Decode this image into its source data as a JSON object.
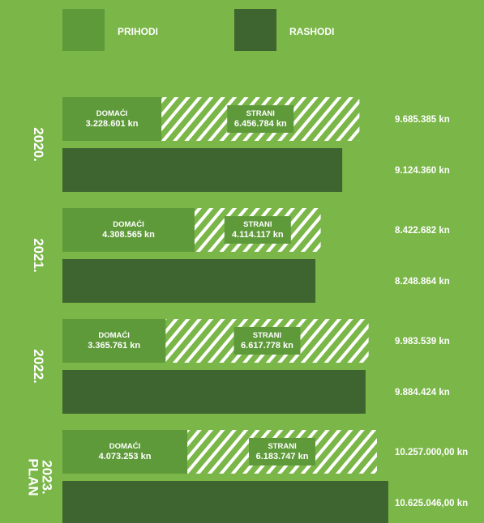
{
  "chart_data": {
    "type": "bar",
    "legend": {
      "position": "top",
      "items": [
        {
          "label": "PRIHODI",
          "color": "#5f9a3a"
        },
        {
          "label": "RASHODI",
          "color": "#3e6430"
        }
      ]
    },
    "colors": {
      "background": "#7ab648",
      "prihodi": "#5f9a3a",
      "rashodi": "#3e6430",
      "stripe": "#ffffff"
    },
    "unit": "kn",
    "domaci_label": "DOMAĆI",
    "strani_label": "STRANI",
    "groups": [
      {
        "year_lines": [
          "2020."
        ],
        "prihodi": {
          "domaci": 3228601,
          "strani": 6456784,
          "domaci_text": "3.228.601 kn",
          "strani_text": "6.456.784 kn",
          "total_text": "9.685.385 kn"
        },
        "rashodi": {
          "value": 9124360,
          "text": "9.124.360 kn"
        }
      },
      {
        "year_lines": [
          "2021."
        ],
        "prihodi": {
          "domaci": 4308565,
          "strani": 4114117,
          "domaci_text": "4.308.565 kn",
          "strani_text": "4.114.117 kn",
          "total_text": "8.422.682 kn"
        },
        "rashodi": {
          "value": 8248864,
          "text": "8.248.864 kn"
        }
      },
      {
        "year_lines": [
          "2022."
        ],
        "prihodi": {
          "domaci": 3365761,
          "strani": 6617778,
          "domaci_text": "3.365.761 kn",
          "strani_text": "6.617.778 kn",
          "total_text": "9.983.539 kn"
        },
        "rashodi": {
          "value": 9884424,
          "text": "9.884.424 kn"
        }
      },
      {
        "year_lines": [
          "PLAN",
          "2023."
        ],
        "prihodi": {
          "domaci": 4073253,
          "strani": 6183747,
          "domaci_text": "4.073.253 kn",
          "strani_text": "6.183.747 kn",
          "total_text": "10.257.000,00 kn"
        },
        "rashodi": {
          "value": 10625046,
          "text": "10.625.046,00 kn"
        }
      }
    ]
  }
}
